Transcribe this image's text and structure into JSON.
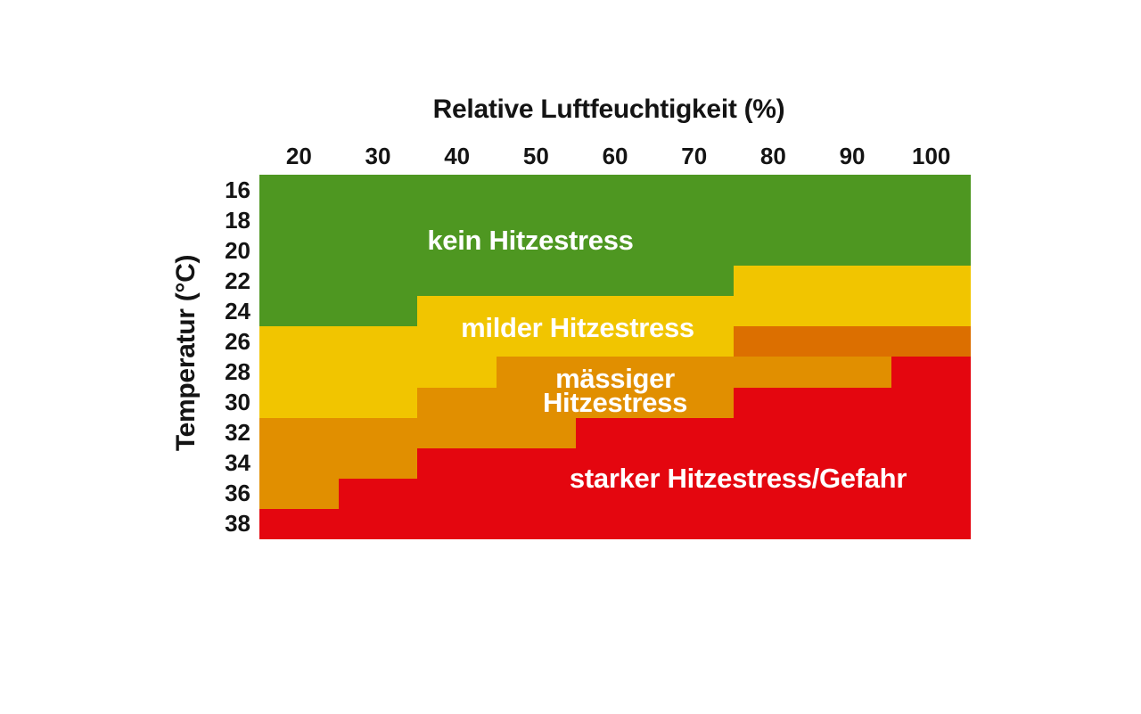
{
  "chart_data": {
    "type": "heatmap",
    "xlabel": "Relative Luftfeuchtigkeit (%)",
    "ylabel": "Temperatur (°C)",
    "x_ticks": [
      "20",
      "30",
      "40",
      "50",
      "60",
      "70",
      "80",
      "90",
      "100"
    ],
    "y_ticks": [
      "16",
      "18",
      "20",
      "22",
      "24",
      "26",
      "28",
      "30",
      "32",
      "34",
      "36",
      "38"
    ],
    "x_axis_range_pct": [
      15,
      105
    ],
    "y_axis_range_c": [
      15,
      39
    ],
    "grid": false,
    "colors": {
      "g": "#4e9721",
      "y": "#f1c500",
      "o": "#e18f00",
      "d": "#dc6f00",
      "r": "#e4060f"
    },
    "categories": {
      "g": "kein Hitzestress",
      "y": "milder Hitzestress",
      "o": "mässiger Hitzestress",
      "d": "mässiger Hitzestress (dunkler Streifen)",
      "r": "starker Hitzestress/Gefahr"
    },
    "cells": [
      [
        "g",
        "g",
        "g",
        "g",
        "g",
        "g",
        "g",
        "g",
        "g"
      ],
      [
        "g",
        "g",
        "g",
        "g",
        "g",
        "g",
        "g",
        "g",
        "g"
      ],
      [
        "g",
        "g",
        "g",
        "g",
        "g",
        "g",
        "g",
        "g",
        "g"
      ],
      [
        "g",
        "g",
        "g",
        "g",
        "g",
        "g",
        "y",
        "y",
        "y"
      ],
      [
        "g",
        "g",
        "y",
        "y",
        "y",
        "y",
        "y",
        "y",
        "y"
      ],
      [
        "y",
        "y",
        "y",
        "y",
        "y",
        "y",
        "d",
        "d",
        "d"
      ],
      [
        "y",
        "y",
        "y",
        "o",
        "o",
        "o",
        "o",
        "o",
        "r"
      ],
      [
        "y",
        "y",
        "o",
        "o",
        "o",
        "o",
        "r",
        "r",
        "r"
      ],
      [
        "o",
        "o",
        "o",
        "o",
        "r",
        "r",
        "r",
        "r",
        "r"
      ],
      [
        "o",
        "o",
        "r",
        "r",
        "r",
        "r",
        "r",
        "r",
        "r"
      ],
      [
        "o",
        "r",
        "r",
        "r",
        "r",
        "r",
        "r",
        "r",
        "r"
      ],
      [
        "r",
        "r",
        "r",
        "r",
        "r",
        "r",
        "r",
        "r",
        "r"
      ]
    ],
    "region_labels": [
      {
        "text": "kein Hitzestress"
      },
      {
        "text": "milder Hitzestress"
      },
      {
        "lines": [
          "mässiger",
          "Hitzestress"
        ]
      },
      {
        "text": "starker Hitzestress/Gefahr"
      }
    ]
  }
}
